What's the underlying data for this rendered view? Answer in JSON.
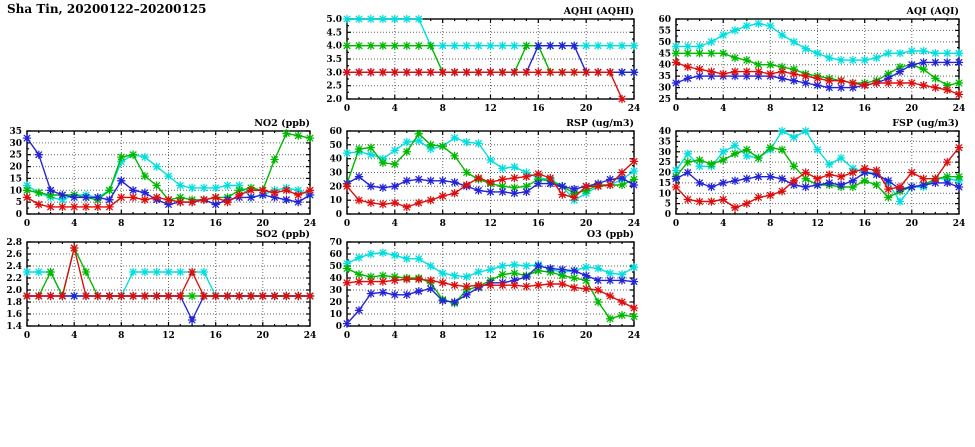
{
  "page": {
    "title": "Sha Tin, 20200122–20200125"
  },
  "colors": {
    "cyan": "#00dede",
    "green": "#00b800",
    "blue": "#2424d6",
    "red": "#dd0e0e",
    "grid": "#666666",
    "axis": "#000000"
  },
  "chart_data": [
    {
      "id": "aqhi",
      "type": "line",
      "title": "AQHI (AQHI)",
      "xlabel": "",
      "ylabel": "",
      "xlim": [
        0,
        24
      ],
      "xtick_step": 4,
      "xminor_step": 1,
      "x_ticks": [
        0,
        4,
        8,
        12,
        16,
        20,
        24
      ],
      "ylim": [
        2.0,
        5.0
      ],
      "ytick_step": 0.5,
      "ydecimals": 1,
      "grid": true,
      "legend": "none",
      "x_start": 0,
      "x_step": 1,
      "series": [
        {
          "name": "series-cyan",
          "color_key": "cyan",
          "values": [
            5,
            5,
            5,
            5,
            5,
            5,
            5,
            4,
            4,
            4,
            4,
            4,
            4,
            4,
            4,
            4,
            4,
            4,
            4,
            4,
            4,
            4,
            4,
            4,
            4
          ]
        },
        {
          "name": "series-green",
          "color_key": "green",
          "values": [
            4,
            4,
            4,
            4,
            4,
            4,
            4,
            4,
            3,
            3,
            3,
            3,
            3,
            3,
            3,
            4,
            4,
            3,
            3,
            3,
            3,
            3,
            3,
            3,
            3
          ]
        },
        {
          "name": "series-blue",
          "color_key": "blue",
          "values": [
            3,
            3,
            3,
            3,
            3,
            3,
            3,
            3,
            3,
            3,
            3,
            3,
            3,
            3,
            3,
            3,
            4,
            4,
            4,
            4,
            3,
            3,
            3,
            3,
            3
          ]
        },
        {
          "name": "series-red",
          "color_key": "red",
          "values": [
            3,
            3,
            3,
            3,
            3,
            3,
            3,
            3,
            3,
            3,
            3,
            3,
            3,
            3,
            3,
            3,
            3,
            3,
            3,
            3,
            3,
            3,
            3,
            2
          ]
        }
      ]
    },
    {
      "id": "aqi",
      "type": "line",
      "title": "AQI (AQI)",
      "xlabel": "",
      "ylabel": "",
      "xlim": [
        0,
        24
      ],
      "xtick_step": 4,
      "xminor_step": 1,
      "x_ticks": [
        0,
        4,
        8,
        12,
        16,
        20,
        24
      ],
      "ylim": [
        25,
        60
      ],
      "ytick_step": 5,
      "ydecimals": 0,
      "grid": true,
      "legend": "none",
      "x_start": 0,
      "x_step": 1,
      "series": [
        {
          "name": "series-cyan",
          "color_key": "cyan",
          "values": [
            48,
            48,
            48,
            50,
            53,
            55,
            57,
            58,
            57,
            53,
            50,
            47,
            45,
            43,
            42,
            42,
            42,
            43,
            45,
            45,
            46,
            46,
            45,
            45,
            45
          ]
        },
        {
          "name": "series-green",
          "color_key": "green",
          "values": [
            45,
            45,
            45,
            45,
            45,
            43,
            42,
            40,
            40,
            39,
            38,
            36,
            35,
            34,
            33,
            32,
            32,
            33,
            36,
            39,
            40,
            38,
            34,
            31,
            32
          ]
        },
        {
          "name": "series-blue",
          "color_key": "blue",
          "values": [
            32,
            34,
            35,
            35,
            35,
            35,
            35,
            35,
            35,
            34,
            33,
            32,
            31,
            30,
            30,
            30,
            31,
            32,
            34,
            37,
            40,
            41,
            41,
            41,
            41
          ]
        },
        {
          "name": "series-red",
          "color_key": "red",
          "values": [
            41,
            39,
            38,
            37,
            36,
            37,
            37,
            37,
            36,
            37,
            36,
            35,
            34,
            33,
            33,
            32,
            31,
            32,
            32,
            32,
            32,
            31,
            30,
            29,
            27
          ]
        }
      ]
    },
    {
      "id": "no2",
      "type": "line",
      "title": "NO2 (ppb)",
      "xlabel": "",
      "ylabel": "",
      "xlim": [
        0,
        24
      ],
      "xtick_step": 4,
      "xminor_step": 1,
      "x_ticks": [
        0,
        4,
        8,
        12,
        16,
        20,
        24
      ],
      "ylim": [
        0,
        35
      ],
      "ytick_step": 5,
      "ydecimals": 0,
      "grid": true,
      "legend": "none",
      "x_start": 0,
      "x_step": 1,
      "series": [
        {
          "name": "series-cyan",
          "color_key": "cyan",
          "values": [
            12,
            9,
            7,
            6,
            8,
            8,
            7,
            10,
            22,
            25,
            24,
            20,
            16,
            12,
            11,
            11,
            11,
            12,
            12,
            7,
            8,
            10,
            11,
            10,
            8
          ]
        },
        {
          "name": "series-green",
          "color_key": "green",
          "values": [
            10,
            9,
            8,
            8,
            8,
            7,
            6,
            10,
            24,
            25,
            16,
            12,
            6,
            7,
            6,
            6,
            7,
            7,
            10,
            11,
            10,
            23,
            34,
            33,
            32
          ]
        },
        {
          "name": "series-blue",
          "color_key": "blue",
          "values": [
            32,
            25,
            10,
            8,
            7,
            7,
            7,
            6,
            14,
            10,
            9,
            6,
            4,
            5,
            5,
            6,
            4,
            6,
            7,
            7,
            8,
            7,
            6,
            5,
            8
          ]
        },
        {
          "name": "series-red",
          "color_key": "red",
          "values": [
            7,
            4,
            3,
            3,
            3,
            3,
            3,
            3,
            7,
            7,
            6,
            7,
            6,
            5,
            5,
            6,
            7,
            5,
            8,
            10,
            10,
            9,
            10,
            8,
            10
          ]
        }
      ]
    },
    {
      "id": "rsp",
      "type": "line",
      "title": "RSP (ug/m3)",
      "xlabel": "",
      "ylabel": "",
      "xlim": [
        0,
        24
      ],
      "xtick_step": 4,
      "xminor_step": 1,
      "x_ticks": [
        0,
        4,
        8,
        12,
        16,
        20,
        24
      ],
      "ylim": [
        0,
        60
      ],
      "ytick_step": 10,
      "ydecimals": 0,
      "grid": true,
      "legend": "none",
      "x_start": 0,
      "x_step": 1,
      "series": [
        {
          "name": "series-cyan",
          "color_key": "cyan",
          "values": [
            44,
            45,
            43,
            40,
            46,
            52,
            53,
            47,
            49,
            55,
            52,
            51,
            39,
            33,
            34,
            30,
            26,
            25,
            20,
            10,
            15,
            20,
            21,
            25,
            31
          ]
        },
        {
          "name": "series-green",
          "color_key": "green",
          "values": [
            22,
            47,
            48,
            37,
            36,
            45,
            58,
            50,
            49,
            42,
            30,
            25,
            22,
            20,
            19,
            20,
            25,
            24,
            20,
            15,
            17,
            21,
            21,
            21,
            25
          ]
        },
        {
          "name": "series-blue",
          "color_key": "blue",
          "values": [
            22,
            27,
            20,
            19,
            20,
            24,
            25,
            24,
            24,
            23,
            20,
            17,
            16,
            16,
            15,
            16,
            22,
            22,
            20,
            18,
            20,
            22,
            25,
            26,
            21
          ]
        },
        {
          "name": "series-red",
          "color_key": "red",
          "values": [
            20,
            10,
            8,
            7,
            8,
            5,
            8,
            10,
            13,
            15,
            21,
            26,
            23,
            25,
            26,
            27,
            29,
            26,
            14,
            12,
            20,
            20,
            21,
            30,
            38
          ]
        }
      ]
    },
    {
      "id": "fsp",
      "type": "line",
      "title": "FSP (ug/m3)",
      "xlabel": "",
      "ylabel": "",
      "xlim": [
        0,
        24
      ],
      "xtick_step": 4,
      "xminor_step": 1,
      "x_ticks": [
        0,
        4,
        8,
        12,
        16,
        20,
        24
      ],
      "ylim": [
        0,
        40
      ],
      "ytick_step": 5,
      "ydecimals": 0,
      "grid": true,
      "legend": "none",
      "x_start": 0,
      "x_step": 1,
      "series": [
        {
          "name": "series-cyan",
          "color_key": "cyan",
          "values": [
            21,
            29,
            23,
            23,
            30,
            33,
            28,
            27,
            31,
            40,
            37,
            40,
            31,
            24,
            27,
            22,
            20,
            20,
            15,
            6,
            13,
            13,
            17,
            17,
            16
          ]
        },
        {
          "name": "series-green",
          "color_key": "green",
          "values": [
            18,
            25,
            26,
            24,
            26,
            29,
            31,
            27,
            32,
            31,
            23,
            17,
            14,
            14,
            13,
            13,
            16,
            14,
            8,
            11,
            13,
            14,
            17,
            18,
            18
          ]
        },
        {
          "name": "series-blue",
          "color_key": "blue",
          "values": [
            17,
            20,
            15,
            13,
            15,
            16,
            17,
            18,
            18,
            17,
            14,
            13,
            14,
            15,
            14,
            16,
            20,
            19,
            16,
            12,
            13,
            14,
            15,
            15,
            13
          ]
        },
        {
          "name": "series-red",
          "color_key": "red",
          "values": [
            13,
            7,
            6,
            6,
            7,
            3,
            5,
            8,
            9,
            11,
            16,
            20,
            17,
            19,
            18,
            20,
            22,
            21,
            12,
            13,
            20,
            17,
            17,
            25,
            32
          ]
        }
      ]
    },
    {
      "id": "so2",
      "type": "line",
      "title": "SO2 (ppb)",
      "xlabel": "",
      "ylabel": "",
      "xlim": [
        0,
        24
      ],
      "xtick_step": 4,
      "xminor_step": 1,
      "x_ticks": [
        0,
        4,
        8,
        12,
        16,
        20,
        24
      ],
      "ylim": [
        1.4,
        2.8
      ],
      "ytick_step": 0.2,
      "ydecimals": 1,
      "grid": true,
      "legend": "none",
      "x_start": 0,
      "x_step": 1,
      "series": [
        {
          "name": "series-cyan",
          "color_key": "cyan",
          "values": [
            2.3,
            2.3,
            2.3,
            1.9,
            1.9,
            1.9,
            1.9,
            1.9,
            1.9,
            2.3,
            2.3,
            2.3,
            2.3,
            2.3,
            2.3,
            2.3,
            1.9,
            1.9,
            1.9,
            1.9,
            1.9,
            1.9,
            1.9,
            1.9,
            1.9
          ]
        },
        {
          "name": "series-green",
          "color_key": "green",
          "values": [
            1.9,
            1.9,
            2.3,
            1.9,
            2.7,
            2.3,
            1.9,
            1.9,
            1.9,
            1.9,
            1.9,
            1.9,
            1.9,
            1.9,
            1.9,
            1.9,
            1.9,
            1.9,
            1.9,
            1.9,
            1.9,
            1.9,
            1.9,
            1.9,
            1.9
          ]
        },
        {
          "name": "series-blue",
          "color_key": "blue",
          "values": [
            1.9,
            1.9,
            1.9,
            1.9,
            1.9,
            1.9,
            1.9,
            1.9,
            1.9,
            1.9,
            1.9,
            1.9,
            1.9,
            1.9,
            1.5,
            1.9,
            1.9,
            1.9,
            1.9,
            1.9,
            1.9,
            1.9,
            1.9,
            1.9,
            1.9
          ]
        },
        {
          "name": "series-red",
          "color_key": "red",
          "values": [
            1.9,
            1.9,
            1.9,
            1.9,
            2.7,
            1.9,
            1.9,
            1.9,
            1.9,
            1.9,
            1.9,
            1.9,
            1.9,
            1.9,
            2.3,
            1.9,
            1.9,
            1.9,
            1.9,
            1.9,
            1.9,
            1.9,
            1.9,
            1.9,
            1.9
          ]
        }
      ]
    },
    {
      "id": "o3",
      "type": "line",
      "title": "O3 (ppb)",
      "xlabel": "",
      "ylabel": "",
      "xlim": [
        0,
        24
      ],
      "xtick_step": 4,
      "xminor_step": 1,
      "x_ticks": [
        0,
        4,
        8,
        12,
        16,
        20,
        24
      ],
      "ylim": [
        0,
        70
      ],
      "ytick_step": 10,
      "ydecimals": 0,
      "grid": true,
      "legend": "none",
      "x_start": 0,
      "x_step": 1,
      "series": [
        {
          "name": "series-cyan",
          "color_key": "cyan",
          "values": [
            52,
            57,
            60,
            61,
            59,
            56,
            56,
            50,
            44,
            42,
            41,
            45,
            47,
            50,
            51,
            50,
            51,
            47,
            45,
            46,
            49,
            48,
            44,
            43,
            49
          ]
        },
        {
          "name": "series-green",
          "color_key": "green",
          "values": [
            48,
            43,
            41,
            42,
            41,
            40,
            40,
            36,
            22,
            19,
            30,
            33,
            38,
            43,
            44,
            42,
            46,
            45,
            42,
            40,
            38,
            20,
            6,
            9,
            8
          ]
        },
        {
          "name": "series-blue",
          "color_key": "blue",
          "values": [
            2,
            13,
            27,
            28,
            26,
            26,
            29,
            31,
            21,
            20,
            26,
            32,
            36,
            36,
            38,
            41,
            50,
            48,
            47,
            46,
            42,
            38,
            38,
            38,
            37
          ]
        },
        {
          "name": "series-red",
          "color_key": "red",
          "values": [
            36,
            37,
            37,
            37,
            38,
            39,
            39,
            38,
            36,
            34,
            33,
            34,
            34,
            34,
            34,
            33,
            34,
            35,
            35,
            32,
            31,
            30,
            25,
            20,
            15
          ]
        }
      ]
    }
  ]
}
